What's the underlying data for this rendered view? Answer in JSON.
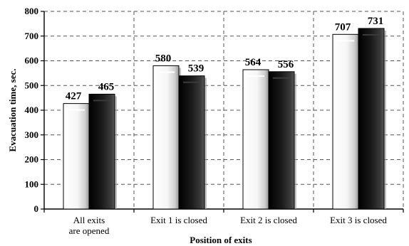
{
  "chart_data": {
    "type": "bar",
    "categories": [
      [
        "All exits",
        "are opened"
      ],
      [
        "Exit 1 is closed"
      ],
      [
        "Exit 2 is closed"
      ],
      [
        "Exit 3 is closed"
      ]
    ],
    "series": [
      {
        "values": [
          427,
          580,
          564,
          707
        ],
        "color": "#f4f4f4"
      },
      {
        "values": [
          465,
          539,
          556,
          731
        ],
        "color": "#111111"
      }
    ],
    "xlabel": "Position of exits",
    "ylabel": "Evacuation time, sec.",
    "ylim": [
      0,
      800
    ],
    "yticks": [
      0,
      100,
      200,
      300,
      400,
      500,
      600,
      700,
      800
    ],
    "grid": true,
    "legend": "none"
  }
}
